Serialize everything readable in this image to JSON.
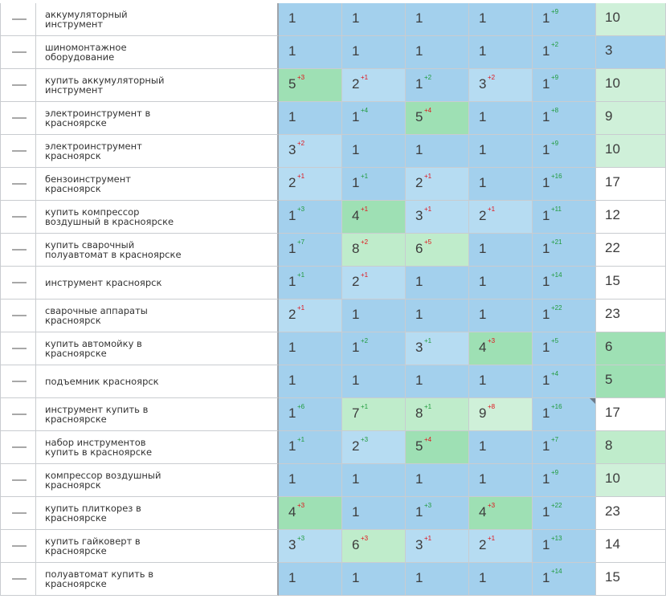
{
  "colors": {
    "blue": "#a3d0ed",
    "lightblue": "#b6dcf2",
    "green": "#9ee0b4",
    "lightgreen": "#bfeccb",
    "palegreen": "#cff0d9",
    "white": "#ffffff",
    "up_delta": "#1f9a3c",
    "down_delta": "#e0121a"
  },
  "rows": [
    {
      "keyword": "аккумуляторный инструмент",
      "positions": [
        {
          "v": "1",
          "d": "",
          "dir": "",
          "bg": "blue"
        },
        {
          "v": "1",
          "d": "",
          "dir": "",
          "bg": "blue"
        },
        {
          "v": "1",
          "d": "",
          "dir": "",
          "bg": "blue"
        },
        {
          "v": "1",
          "d": "",
          "dir": "",
          "bg": "blue"
        },
        {
          "v": "1",
          "d": "+9",
          "dir": "up",
          "bg": "blue"
        }
      ],
      "avg": "10",
      "avg_bg": "palegreen"
    },
    {
      "keyword": "шиномонтажное оборудование",
      "positions": [
        {
          "v": "1",
          "d": "",
          "dir": "",
          "bg": "blue"
        },
        {
          "v": "1",
          "d": "",
          "dir": "",
          "bg": "blue"
        },
        {
          "v": "1",
          "d": "",
          "dir": "",
          "bg": "blue"
        },
        {
          "v": "1",
          "d": "",
          "dir": "",
          "bg": "blue"
        },
        {
          "v": "1",
          "d": "+2",
          "dir": "up",
          "bg": "blue"
        }
      ],
      "avg": "3",
      "avg_bg": "blue"
    },
    {
      "keyword": "купить аккумуляторный инструмент",
      "positions": [
        {
          "v": "5",
          "d": "+3",
          "dir": "down",
          "bg": "green"
        },
        {
          "v": "2",
          "d": "+1",
          "dir": "down",
          "bg": "lightblue"
        },
        {
          "v": "1",
          "d": "+2",
          "dir": "up",
          "bg": "blue"
        },
        {
          "v": "3",
          "d": "+2",
          "dir": "down",
          "bg": "lightblue"
        },
        {
          "v": "1",
          "d": "+9",
          "dir": "up",
          "bg": "blue"
        }
      ],
      "avg": "10",
      "avg_bg": "palegreen"
    },
    {
      "keyword": "электроинструмент в красноярске",
      "positions": [
        {
          "v": "1",
          "d": "",
          "dir": "",
          "bg": "blue"
        },
        {
          "v": "1",
          "d": "+4",
          "dir": "up",
          "bg": "blue"
        },
        {
          "v": "5",
          "d": "+4",
          "dir": "down",
          "bg": "green"
        },
        {
          "v": "1",
          "d": "",
          "dir": "",
          "bg": "blue"
        },
        {
          "v": "1",
          "d": "+8",
          "dir": "up",
          "bg": "blue"
        }
      ],
      "avg": "9",
      "avg_bg": "palegreen"
    },
    {
      "keyword": "электроинструмент красноярск",
      "positions": [
        {
          "v": "3",
          "d": "+2",
          "dir": "down",
          "bg": "lightblue"
        },
        {
          "v": "1",
          "d": "",
          "dir": "",
          "bg": "blue"
        },
        {
          "v": "1",
          "d": "",
          "dir": "",
          "bg": "blue"
        },
        {
          "v": "1",
          "d": "",
          "dir": "",
          "bg": "blue"
        },
        {
          "v": "1",
          "d": "+9",
          "dir": "up",
          "bg": "blue"
        }
      ],
      "avg": "10",
      "avg_bg": "palegreen"
    },
    {
      "keyword": "бензоинструмент красноярск",
      "positions": [
        {
          "v": "2",
          "d": "+1",
          "dir": "down",
          "bg": "lightblue"
        },
        {
          "v": "1",
          "d": "+1",
          "dir": "up",
          "bg": "blue"
        },
        {
          "v": "2",
          "d": "+1",
          "dir": "down",
          "bg": "lightblue"
        },
        {
          "v": "1",
          "d": "",
          "dir": "",
          "bg": "blue"
        },
        {
          "v": "1",
          "d": "+16",
          "dir": "up",
          "bg": "blue"
        }
      ],
      "avg": "17",
      "avg_bg": "white"
    },
    {
      "keyword": "купить компрессор воздушный в красноярске",
      "positions": [
        {
          "v": "1",
          "d": "+3",
          "dir": "up",
          "bg": "blue"
        },
        {
          "v": "4",
          "d": "+1",
          "dir": "down",
          "bg": "green"
        },
        {
          "v": "3",
          "d": "+1",
          "dir": "down",
          "bg": "lightblue"
        },
        {
          "v": "2",
          "d": "+1",
          "dir": "down",
          "bg": "lightblue"
        },
        {
          "v": "1",
          "d": "+11",
          "dir": "up",
          "bg": "blue"
        }
      ],
      "avg": "12",
      "avg_bg": "white"
    },
    {
      "keyword": "купить сварочный полуавтомат в красноярске",
      "positions": [
        {
          "v": "1",
          "d": "+7",
          "dir": "up",
          "bg": "blue"
        },
        {
          "v": "8",
          "d": "+2",
          "dir": "down",
          "bg": "lightgreen"
        },
        {
          "v": "6",
          "d": "+5",
          "dir": "down",
          "bg": "lightgreen"
        },
        {
          "v": "1",
          "d": "",
          "dir": "",
          "bg": "blue"
        },
        {
          "v": "1",
          "d": "+21",
          "dir": "up",
          "bg": "blue"
        }
      ],
      "avg": "22",
      "avg_bg": "white"
    },
    {
      "keyword": "инструмент красноярск",
      "positions": [
        {
          "v": "1",
          "d": "+1",
          "dir": "up",
          "bg": "blue"
        },
        {
          "v": "2",
          "d": "+1",
          "dir": "down",
          "bg": "lightblue"
        },
        {
          "v": "1",
          "d": "",
          "dir": "",
          "bg": "blue"
        },
        {
          "v": "1",
          "d": "",
          "dir": "",
          "bg": "blue"
        },
        {
          "v": "1",
          "d": "+14",
          "dir": "up",
          "bg": "blue"
        }
      ],
      "avg": "15",
      "avg_bg": "white"
    },
    {
      "keyword": "сварочные аппараты красноярск",
      "positions": [
        {
          "v": "2",
          "d": "+1",
          "dir": "down",
          "bg": "lightblue"
        },
        {
          "v": "1",
          "d": "",
          "dir": "",
          "bg": "blue"
        },
        {
          "v": "1",
          "d": "",
          "dir": "",
          "bg": "blue"
        },
        {
          "v": "1",
          "d": "",
          "dir": "",
          "bg": "blue"
        },
        {
          "v": "1",
          "d": "+22",
          "dir": "up",
          "bg": "blue"
        }
      ],
      "avg": "23",
      "avg_bg": "white"
    },
    {
      "keyword": "купить автомойку в красноярске",
      "positions": [
        {
          "v": "1",
          "d": "",
          "dir": "",
          "bg": "blue"
        },
        {
          "v": "1",
          "d": "+2",
          "dir": "up",
          "bg": "blue"
        },
        {
          "v": "3",
          "d": "+1",
          "dir": "up",
          "bg": "lightblue"
        },
        {
          "v": "4",
          "d": "+3",
          "dir": "down",
          "bg": "green"
        },
        {
          "v": "1",
          "d": "+5",
          "dir": "up",
          "bg": "blue"
        }
      ],
      "avg": "6",
      "avg_bg": "green"
    },
    {
      "keyword": "подъемник красноярск",
      "positions": [
        {
          "v": "1",
          "d": "",
          "dir": "",
          "bg": "blue"
        },
        {
          "v": "1",
          "d": "",
          "dir": "",
          "bg": "blue"
        },
        {
          "v": "1",
          "d": "",
          "dir": "",
          "bg": "blue"
        },
        {
          "v": "1",
          "d": "",
          "dir": "",
          "bg": "blue"
        },
        {
          "v": "1",
          "d": "+4",
          "dir": "up",
          "bg": "blue"
        }
      ],
      "avg": "5",
      "avg_bg": "green"
    },
    {
      "keyword": "инструмент купить в красноярске",
      "positions": [
        {
          "v": "1",
          "d": "+6",
          "dir": "up",
          "bg": "blue"
        },
        {
          "v": "7",
          "d": "+1",
          "dir": "up",
          "bg": "lightgreen"
        },
        {
          "v": "8",
          "d": "+1",
          "dir": "up",
          "bg": "lightgreen"
        },
        {
          "v": "9",
          "d": "+8",
          "dir": "down",
          "bg": "palegreen"
        },
        {
          "v": "1",
          "d": "+16",
          "dir": "up",
          "bg": "blue",
          "corner": true
        }
      ],
      "avg": "17",
      "avg_bg": "white"
    },
    {
      "keyword": "набор инструментов купить в красноярске",
      "positions": [
        {
          "v": "1",
          "d": "+1",
          "dir": "up",
          "bg": "blue"
        },
        {
          "v": "2",
          "d": "+3",
          "dir": "up",
          "bg": "lightblue"
        },
        {
          "v": "5",
          "d": "+4",
          "dir": "down",
          "bg": "green"
        },
        {
          "v": "1",
          "d": "",
          "dir": "",
          "bg": "blue"
        },
        {
          "v": "1",
          "d": "+7",
          "dir": "up",
          "bg": "blue"
        }
      ],
      "avg": "8",
      "avg_bg": "lightgreen"
    },
    {
      "keyword": "компрессор воздушный красноярск",
      "positions": [
        {
          "v": "1",
          "d": "",
          "dir": "",
          "bg": "blue"
        },
        {
          "v": "1",
          "d": "",
          "dir": "",
          "bg": "blue"
        },
        {
          "v": "1",
          "d": "",
          "dir": "",
          "bg": "blue"
        },
        {
          "v": "1",
          "d": "",
          "dir": "",
          "bg": "blue"
        },
        {
          "v": "1",
          "d": "+9",
          "dir": "up",
          "bg": "blue"
        }
      ],
      "avg": "10",
      "avg_bg": "palegreen"
    },
    {
      "keyword": "купить плиткорез в красноярске",
      "positions": [
        {
          "v": "4",
          "d": "+3",
          "dir": "down",
          "bg": "green"
        },
        {
          "v": "1",
          "d": "",
          "dir": "",
          "bg": "blue"
        },
        {
          "v": "1",
          "d": "+3",
          "dir": "up",
          "bg": "blue"
        },
        {
          "v": "4",
          "d": "+3",
          "dir": "down",
          "bg": "green"
        },
        {
          "v": "1",
          "d": "+22",
          "dir": "up",
          "bg": "blue"
        }
      ],
      "avg": "23",
      "avg_bg": "white"
    },
    {
      "keyword": "купить гайковерт в красноярске",
      "positions": [
        {
          "v": "3",
          "d": "+3",
          "dir": "up",
          "bg": "lightblue"
        },
        {
          "v": "6",
          "d": "+3",
          "dir": "down",
          "bg": "lightgreen"
        },
        {
          "v": "3",
          "d": "+1",
          "dir": "down",
          "bg": "lightblue"
        },
        {
          "v": "2",
          "d": "+1",
          "dir": "down",
          "bg": "lightblue"
        },
        {
          "v": "1",
          "d": "+13",
          "dir": "up",
          "bg": "blue"
        }
      ],
      "avg": "14",
      "avg_bg": "white"
    },
    {
      "keyword": "полуавтомат купить в красноярске",
      "positions": [
        {
          "v": "1",
          "d": "",
          "dir": "",
          "bg": "blue"
        },
        {
          "v": "1",
          "d": "",
          "dir": "",
          "bg": "blue"
        },
        {
          "v": "1",
          "d": "",
          "dir": "",
          "bg": "blue"
        },
        {
          "v": "1",
          "d": "",
          "dir": "",
          "bg": "blue"
        },
        {
          "v": "1",
          "d": "+14",
          "dir": "up",
          "bg": "blue"
        }
      ],
      "avg": "15",
      "avg_bg": "white"
    }
  ]
}
